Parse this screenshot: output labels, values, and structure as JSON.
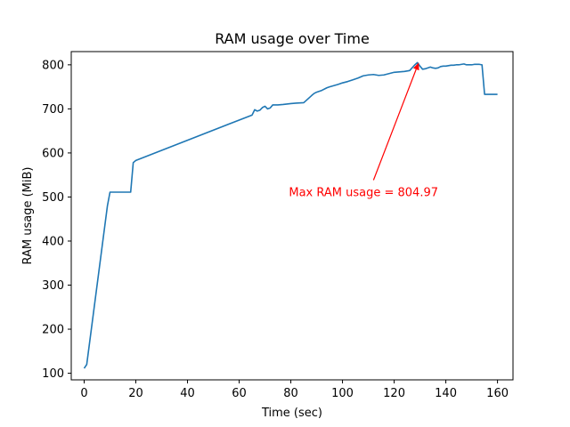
{
  "chart_data": {
    "type": "line",
    "title": "RAM usage over Time",
    "xlabel": "Time (sec)",
    "ylabel": "RAM usage (MiB)",
    "xlim": [
      -5,
      166
    ],
    "ylim": [
      85,
      830
    ],
    "xticks": [
      0,
      20,
      40,
      60,
      80,
      100,
      120,
      140,
      160
    ],
    "yticks": [
      100,
      200,
      300,
      400,
      500,
      600,
      700,
      800
    ],
    "grid": false,
    "series": [
      {
        "color": "#1f77b4",
        "x": [
          0,
          1,
          9,
          10,
          17,
          18,
          19,
          20,
          65,
          66,
          67,
          68,
          69,
          70,
          71,
          72,
          73,
          74,
          75,
          77,
          80,
          82,
          85,
          88,
          89,
          90,
          92,
          94,
          95,
          98,
          100,
          102,
          104,
          106,
          108,
          110,
          112,
          114,
          116,
          118,
          120,
          122,
          124,
          126,
          128,
          129,
          130,
          131,
          132,
          133,
          134,
          135,
          136,
          137,
          138,
          139,
          140,
          141,
          142,
          143,
          144,
          145,
          146,
          147,
          148,
          149,
          150,
          151,
          152,
          153,
          154,
          155,
          156,
          158,
          160
        ],
        "y": [
          111,
          120,
          480,
          511,
          511,
          511,
          578,
          583,
          686,
          698,
          695,
          697,
          703,
          706,
          700,
          702,
          709,
          709,
          709,
          710,
          712,
          713,
          714,
          730,
          735,
          738,
          742,
          748,
          750,
          755,
          759,
          762,
          766,
          770,
          775,
          777,
          778,
          776,
          777,
          780,
          783,
          784,
          785,
          787,
          800,
          805,
          797,
          790,
          791,
          793,
          795,
          793,
          792,
          793,
          796,
          797,
          797,
          798,
          799,
          799,
          800,
          800,
          801,
          802,
          800,
          800,
          800,
          801,
          801,
          801,
          800,
          733,
          733,
          733,
          733
        ]
      }
    ],
    "annotation": {
      "text": "Max RAM usage = 804.97",
      "color": "#ff0000",
      "point": [
        129.5,
        804.97
      ],
      "text_pos": [
        112,
        510
      ]
    }
  }
}
